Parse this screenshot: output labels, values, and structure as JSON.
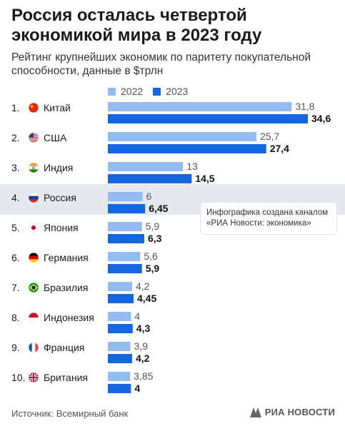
{
  "header": {
    "title": "Россия осталась четвертой экономикой мира в 2023 году",
    "subtitle": "Рейтинг крупнейших экономик по паритету покупательной способности, данные в $трлн"
  },
  "colors": {
    "series_2022": "#94bcf0",
    "series_2023": "#1467e0",
    "highlight_row": "#e5e9ef"
  },
  "note": "Инфографика создана каналом «РИА Новости: экономика»",
  "footer": {
    "source": "Источник: Всемирный банк",
    "logo_text": "РИА НОВОСТИ",
    "logo_icon": "ria-logo-icon"
  },
  "chart_data": {
    "type": "bar",
    "orientation": "horizontal",
    "highlight_category": "Россия",
    "categories": [
      {
        "rank": "1.",
        "name": "Китай",
        "flag": "china-flag-icon"
      },
      {
        "rank": "2.",
        "name": "США",
        "flag": "usa-flag-icon"
      },
      {
        "rank": "3.",
        "name": "Индия",
        "flag": "india-flag-icon"
      },
      {
        "rank": "4.",
        "name": "Россия",
        "flag": "russia-flag-icon"
      },
      {
        "rank": "5.",
        "name": "Япония",
        "flag": "japan-flag-icon"
      },
      {
        "rank": "6.",
        "name": "Германия",
        "flag": "germany-flag-icon"
      },
      {
        "rank": "7.",
        "name": "Бразилия",
        "flag": "brazil-flag-icon"
      },
      {
        "rank": "8.",
        "name": "Индонезия",
        "flag": "indonesia-flag-icon"
      },
      {
        "rank": "9.",
        "name": "Франция",
        "flag": "france-flag-icon"
      },
      {
        "rank": "10.",
        "name": "Британия",
        "flag": "uk-flag-icon"
      }
    ],
    "series": [
      {
        "name": "2022",
        "values": [
          31.8,
          25.7,
          13,
          6,
          5.9,
          5.6,
          4.2,
          4,
          3.9,
          3.85
        ],
        "labels": [
          "31,8",
          "25,7",
          "13",
          "6",
          "5,9",
          "5,6",
          "4,2",
          "4",
          "3,9",
          "3,85"
        ]
      },
      {
        "name": "2023",
        "values": [
          34.6,
          27.4,
          14.5,
          6.45,
          6.3,
          5.9,
          4.45,
          4.3,
          4.2,
          4
        ],
        "labels": [
          "34,6",
          "27,4",
          "14,5",
          "6,45",
          "6,3",
          "5,9",
          "4,45",
          "4,3",
          "4,2",
          "4"
        ]
      }
    ],
    "xlim": [
      0,
      34.6
    ],
    "grid": false,
    "legend": "top"
  }
}
